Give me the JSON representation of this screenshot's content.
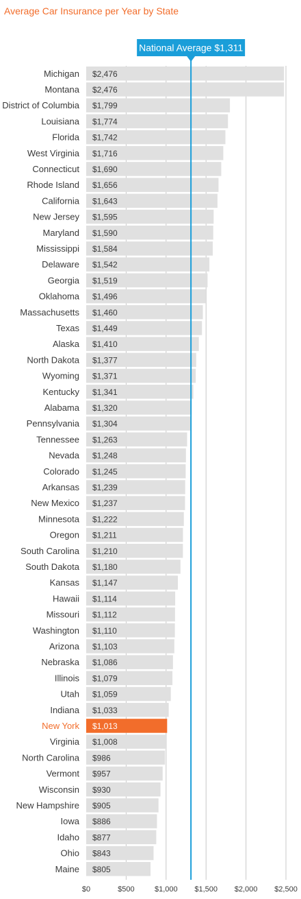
{
  "chart_data": {
    "type": "bar",
    "orientation": "horizontal",
    "title": "Average Car Insurance per Year by State",
    "reference_line": {
      "label": "National Average $1,311",
      "value": 1311
    },
    "highlight": "New York",
    "xlim": [
      0,
      2500
    ],
    "x_ticks": [
      {
        "value": 0,
        "label": "$0"
      },
      {
        "value": 500,
        "label": "$500"
      },
      {
        "value": 1000,
        "label": "$1,000"
      },
      {
        "value": 1500,
        "label": "$1,500"
      },
      {
        "value": 2000,
        "label": "$2,000"
      },
      {
        "value": 2500,
        "label": "$2,500"
      }
    ],
    "grid": true,
    "categories": [
      "Michigan",
      "Montana",
      "District of Columbia",
      "Louisiana",
      "Florida",
      "West Virginia",
      "Connecticut",
      "Rhode Island",
      "California",
      "New Jersey",
      "Maryland",
      "Mississippi",
      "Delaware",
      "Georgia",
      "Oklahoma",
      "Massachusetts",
      "Texas",
      "Alaska",
      "North Dakota",
      "Wyoming",
      "Kentucky",
      "Alabama",
      "Pennsylvania",
      "Tennessee",
      "Nevada",
      "Colorado",
      "Arkansas",
      "New Mexico",
      "Minnesota",
      "Oregon",
      "South Carolina",
      "South Dakota",
      "Kansas",
      "Hawaii",
      "Missouri",
      "Washington",
      "Arizona",
      "Nebraska",
      "Illinois",
      "Utah",
      "Indiana",
      "New York",
      "Virginia",
      "North Carolina",
      "Vermont",
      "Wisconsin",
      "New Hampshire",
      "Iowa",
      "Idaho",
      "Ohio",
      "Maine"
    ],
    "values": [
      2476,
      2476,
      1799,
      1774,
      1742,
      1716,
      1690,
      1656,
      1643,
      1595,
      1590,
      1584,
      1542,
      1519,
      1496,
      1460,
      1449,
      1410,
      1377,
      1371,
      1341,
      1320,
      1304,
      1263,
      1248,
      1245,
      1239,
      1237,
      1222,
      1211,
      1210,
      1180,
      1147,
      1114,
      1112,
      1110,
      1103,
      1086,
      1079,
      1059,
      1033,
      1013,
      1008,
      986,
      957,
      930,
      905,
      886,
      877,
      843,
      805
    ],
    "value_labels": [
      "$2,476",
      "$2,476",
      "$1,799",
      "$1,774",
      "$1,742",
      "$1,716",
      "$1,690",
      "$1,656",
      "$1,643",
      "$1,595",
      "$1,590",
      "$1,584",
      "$1,542",
      "$1,519",
      "$1,496",
      "$1,460",
      "$1,449",
      "$1,410",
      "$1,377",
      "$1,371",
      "$1,341",
      "$1,320",
      "$1,304",
      "$1,263",
      "$1,248",
      "$1,245",
      "$1,239",
      "$1,237",
      "$1,222",
      "$1,211",
      "$1,210",
      "$1,180",
      "$1,147",
      "$1,114",
      "$1,112",
      "$1,110",
      "$1,103",
      "$1,086",
      "$1,079",
      "$1,059",
      "$1,033",
      "$1,013",
      "$1,008",
      "$986",
      "$957",
      "$930",
      "$905",
      "$886",
      "$877",
      "$843",
      "$805"
    ]
  },
  "colors": {
    "title": "#f26d2b",
    "bar": "#e0e0e0",
    "highlight": "#f26d2b",
    "reference_line": "#1a9ed9",
    "grid": "#c8c8c8",
    "label": "#3a3a3a",
    "value_label": "#3a3a3a",
    "highlight_value_label": "#ffffff"
  }
}
